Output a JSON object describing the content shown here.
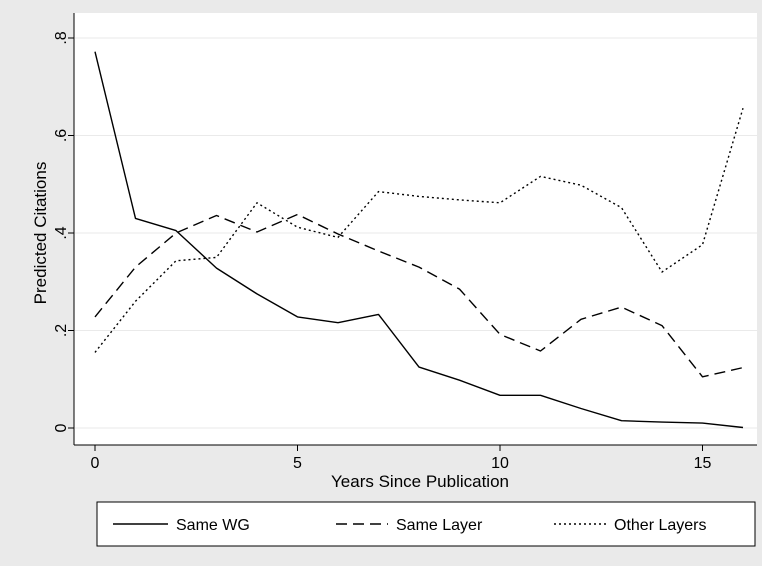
{
  "chart_data": {
    "type": "line",
    "xlabel": "Years Since Publication",
    "ylabel": "Predicted Citations",
    "xlim": [
      0,
      16
    ],
    "ylim": [
      0,
      0.8
    ],
    "x_ticks": [
      0,
      5,
      10,
      15
    ],
    "x_tick_labels": [
      "0",
      "5",
      "10",
      "15"
    ],
    "y_ticks": [
      0,
      0.2,
      0.4,
      0.6,
      0.8
    ],
    "y_tick_labels": [
      "0",
      ".2",
      ".4",
      ".6",
      ".8"
    ],
    "grid": true,
    "legend_position": "bottom",
    "x": [
      0,
      1,
      2,
      3,
      4,
      5,
      6,
      7,
      8,
      9,
      10,
      11,
      12,
      13,
      14,
      15,
      16
    ],
    "series": [
      {
        "name": "Same WG",
        "style": "solid",
        "values": [
          0.772,
          0.43,
          0.405,
          0.328,
          0.275,
          0.228,
          0.216,
          0.233,
          0.125,
          0.098,
          0.067,
          0.067,
          0.04,
          0.015,
          0.012,
          0.01,
          0.001
        ]
      },
      {
        "name": "Same Layer",
        "style": "dashed",
        "values": [
          0.228,
          0.33,
          0.4,
          0.436,
          0.402,
          0.438,
          0.398,
          0.363,
          0.33,
          0.285,
          0.192,
          0.158,
          0.223,
          0.248,
          0.21,
          0.105,
          0.124
        ]
      },
      {
        "name": "Other Layers",
        "style": "dotted",
        "values": [
          0.155,
          0.26,
          0.343,
          0.35,
          0.462,
          0.412,
          0.391,
          0.485,
          0.475,
          0.468,
          0.462,
          0.516,
          0.498,
          0.452,
          0.32,
          0.376,
          0.656
        ]
      }
    ],
    "colors": {
      "background": "#eaeaea",
      "plot_background": "#ffffff",
      "line": "#000000",
      "grid": "#eaeaea"
    }
  }
}
